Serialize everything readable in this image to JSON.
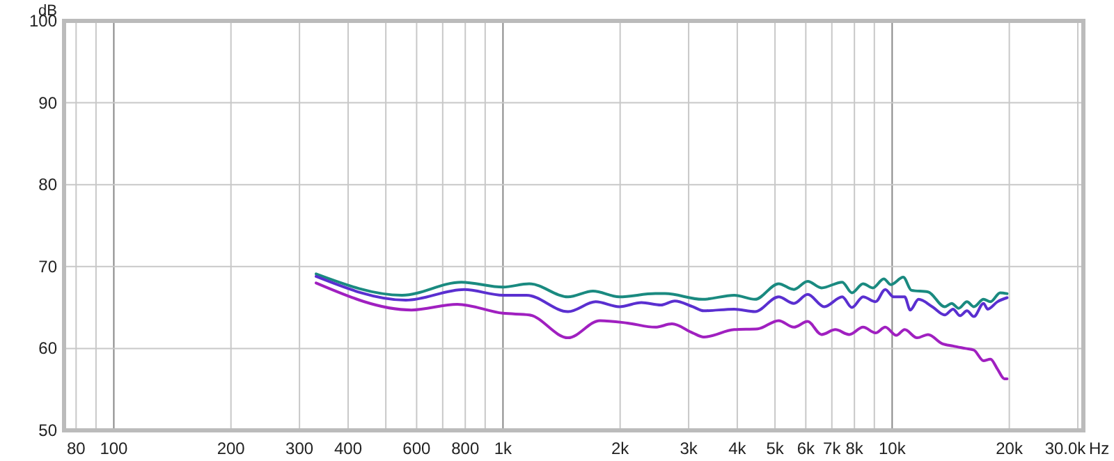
{
  "chart_data": {
    "type": "line",
    "ylabel": "dB",
    "log": "x",
    "grid": true,
    "xlabel": "Hz",
    "marker": "none",
    "line_style": "solid",
    "xlim": [
      74.5,
      31000
    ],
    "ylim": [
      50,
      100
    ],
    "yticks": [
      50,
      60,
      70,
      80,
      90,
      100
    ],
    "xticks": [
      80,
      {
        "value": 90,
        "label": null
      },
      100,
      200,
      300,
      400,
      {
        "value": 500,
        "label": null
      },
      600,
      {
        "value": 700,
        "label": null
      },
      800,
      {
        "value": 900,
        "label": null
      },
      {
        "value": 1000,
        "label": "1k"
      },
      {
        "value": 2000,
        "label": "2k"
      },
      {
        "value": 3000,
        "label": "3k"
      },
      {
        "value": 4000,
        "label": "4k"
      },
      {
        "value": 5000,
        "label": "5k"
      },
      {
        "value": 6000,
        "label": "6k"
      },
      {
        "value": 7000,
        "label": "7k"
      },
      {
        "value": 8000,
        "label": "8k"
      },
      {
        "value": 9000,
        "label": null
      },
      {
        "value": 10000,
        "label": "10k"
      },
      {
        "value": 20000,
        "label": "20k"
      },
      {
        "value": 30000,
        "label": "30.0k"
      }
    ],
    "series": [
      {
        "color": "#1a8a80",
        "x": [
          331,
          550,
          782,
          1000,
          1168,
          1470,
          1703,
          1990,
          2463,
          2609,
          3254,
          3929,
          4443,
          5108,
          5590,
          6066,
          6585,
          7443,
          7882,
          8420,
          8916,
          9520,
          9918,
          10680,
          11210,
          12370,
          13650,
          14220,
          14820,
          15570,
          16220,
          17170,
          17890,
          18950,
          19740
        ],
        "values": [
          69.1,
          66.5,
          68.1,
          67.5,
          67.9,
          66.3,
          67.0,
          66.3,
          66.7,
          66.7,
          66.0,
          66.5,
          66.0,
          67.9,
          67.2,
          68.2,
          67.4,
          68.1,
          66.8,
          67.9,
          67.4,
          68.5,
          67.8,
          68.7,
          67.1,
          66.9,
          65.1,
          65.5,
          64.9,
          65.7,
          65.1,
          66.0,
          65.7,
          66.8,
          66.7
        ]
      },
      {
        "color": "#5a2fd0",
        "x": [
          331,
          563,
          795,
          1000,
          1149,
          1470,
          1731,
          1990,
          2269,
          2545,
          2763,
          3073,
          3281,
          3929,
          4443,
          5108,
          5590,
          6066,
          6693,
          7443,
          7882,
          8420,
          9065,
          9600,
          10080,
          10770,
          11130,
          11690,
          12680,
          13650,
          14340,
          14940,
          15570,
          16220,
          17170,
          17610,
          18640,
          19740
        ],
        "values": [
          68.8,
          65.9,
          67.2,
          66.5,
          66.5,
          64.5,
          65.7,
          65.1,
          65.6,
          65.3,
          65.8,
          65.1,
          64.6,
          64.8,
          64.5,
          66.3,
          65.5,
          66.6,
          65.1,
          66.3,
          65.0,
          66.3,
          65.7,
          67.2,
          66.3,
          66.3,
          64.7,
          66.0,
          65.1,
          64.1,
          64.8,
          64.0,
          64.6,
          63.9,
          65.5,
          64.8,
          65.7,
          66.2
        ]
      },
      {
        "color": "#a020c0",
        "x": [
          331,
          582,
          763,
          1000,
          1168,
          1470,
          1775,
          2091,
          2463,
          2718,
          3073,
          3281,
          3929,
          4516,
          5108,
          5590,
          6066,
          6585,
          7147,
          7757,
          8420,
          9065,
          9600,
          10250,
          10770,
          11590,
          12370,
          13430,
          14340,
          15440,
          16220,
          17170,
          17890,
          18640,
          19430,
          19740
        ],
        "values": [
          68.0,
          64.7,
          65.4,
          64.3,
          64.1,
          61.3,
          63.4,
          63.1,
          62.6,
          63.0,
          61.9,
          61.4,
          62.3,
          62.4,
          63.4,
          62.6,
          63.3,
          61.7,
          62.3,
          61.7,
          62.6,
          61.9,
          62.6,
          61.6,
          62.3,
          61.3,
          61.7,
          60.6,
          60.3,
          60.0,
          59.8,
          58.5,
          58.7,
          57.5,
          56.3,
          56.3
        ]
      }
    ]
  }
}
